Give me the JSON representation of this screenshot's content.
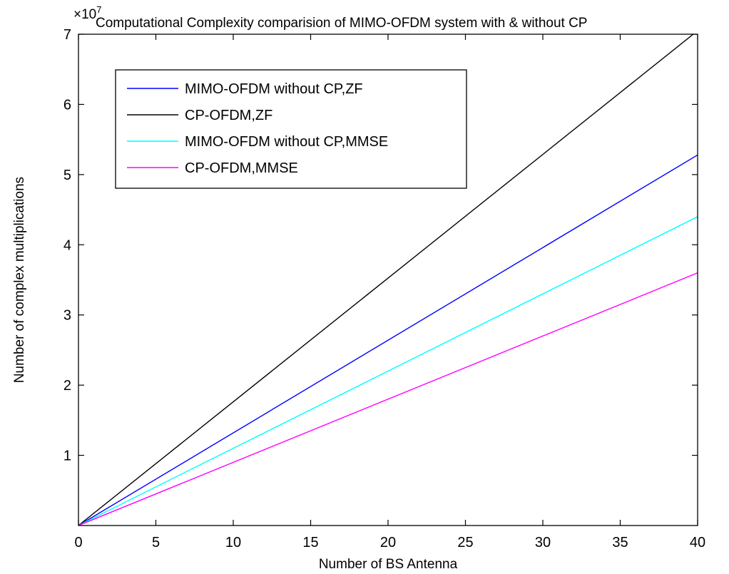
{
  "chart_data": {
    "type": "line",
    "title": "Computational Complexity comparision of MIMO-OFDM system with & without CP",
    "xlabel": "Number of BS Antenna",
    "ylabel": "Number of complex multiplications",
    "y_exponent_label": "×10",
    "y_exponent_power": "7",
    "xlim": [
      0,
      40
    ],
    "ylim": [
      0,
      7
    ],
    "x_ticks": [
      0,
      5,
      10,
      15,
      20,
      25,
      30,
      35,
      40
    ],
    "x_tick_labels": [
      "0",
      "5",
      "10",
      "15",
      "20",
      "25",
      "30",
      "35",
      "40"
    ],
    "y_ticks": [
      1,
      2,
      3,
      4,
      5,
      6,
      7
    ],
    "y_tick_labels": [
      "1",
      "2",
      "3",
      "4",
      "5",
      "6",
      "7"
    ],
    "y_scale_factor": 10000000,
    "grid": false,
    "legend_position": "top-left",
    "series": [
      {
        "name": "MIMO-OFDM without CP,ZF",
        "color": "#0000ff",
        "x": [
          0,
          40
        ],
        "y": [
          0,
          5.28
        ]
      },
      {
        "name": "CP-OFDM,ZF",
        "color": "#000000",
        "x": [
          0,
          40
        ],
        "y": [
          0,
          7.05
        ]
      },
      {
        "name": "MIMO-OFDM without CP,MMSE",
        "color": "#00ffff",
        "x": [
          0,
          40
        ],
        "y": [
          0,
          4.4
        ]
      },
      {
        "name": "CP-OFDM,MMSE",
        "color": "#ff00ff",
        "x": [
          0,
          40
        ],
        "y": [
          0,
          3.6
        ]
      }
    ]
  }
}
